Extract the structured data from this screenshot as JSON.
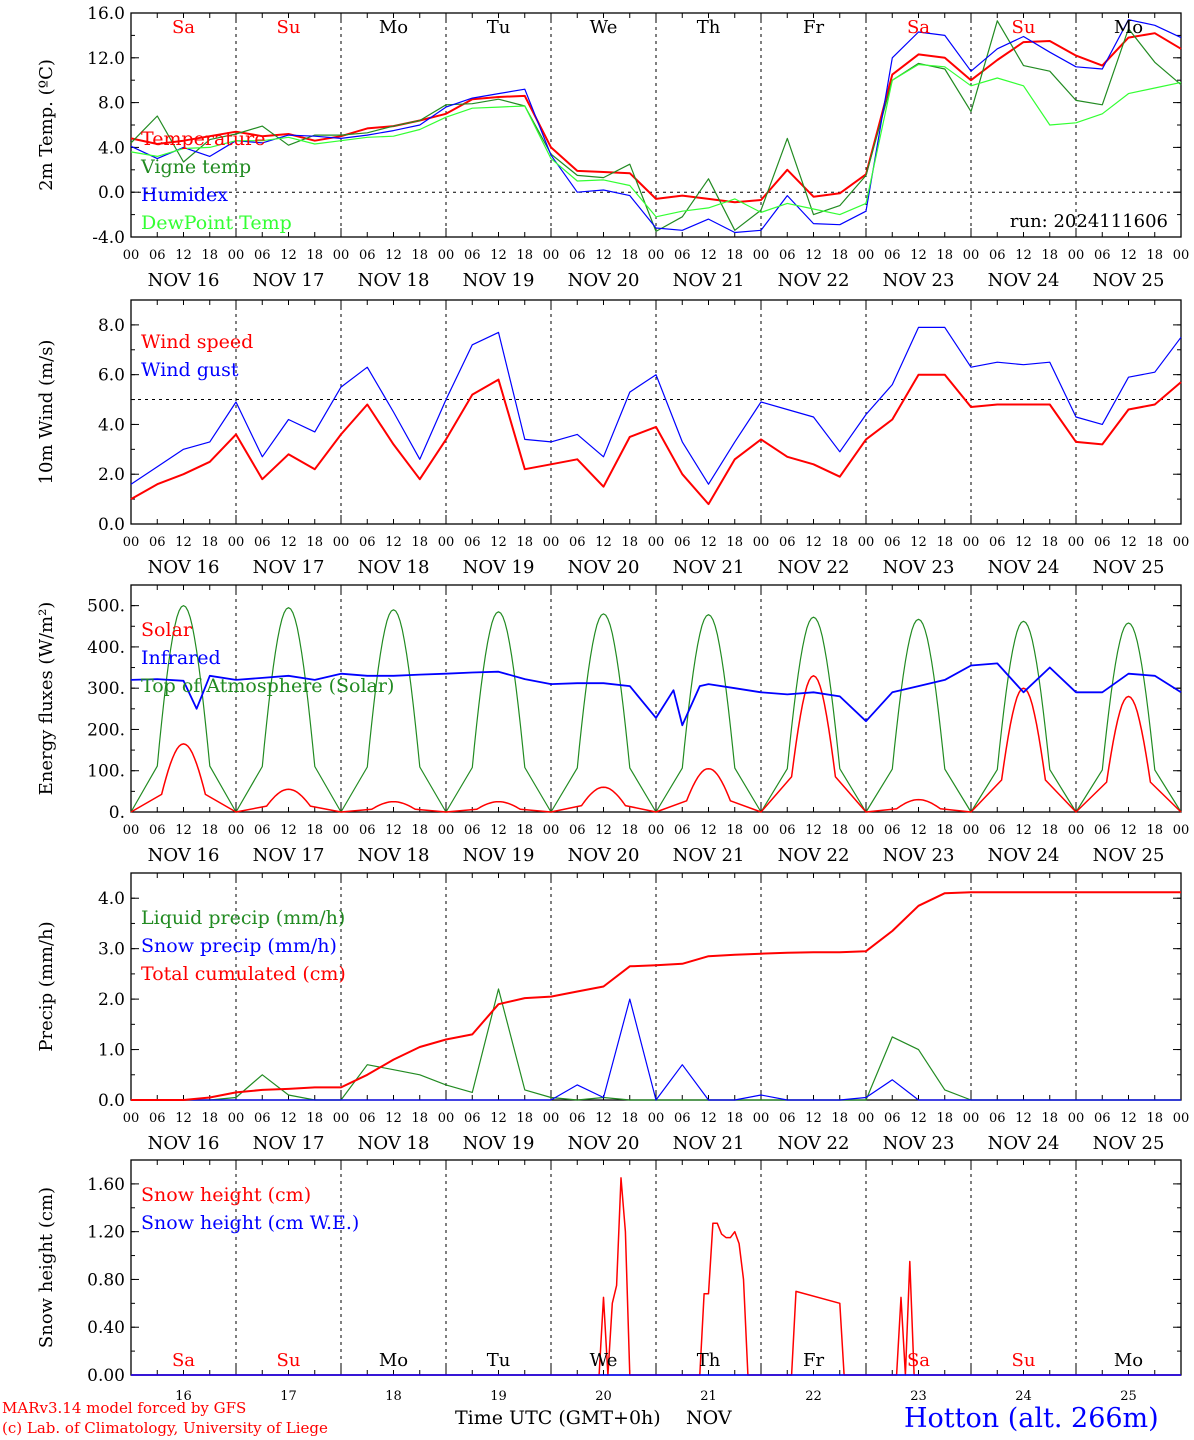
{
  "colors": {
    "red": "#ff0000",
    "green": "#228b22",
    "blue": "#0000ff",
    "lightgreen": "#33ff33",
    "darkgreen": "#228b22",
    "axis": "#000000"
  },
  "footer": {
    "model_line": "MARv3.14 model forced by GFS",
    "copyright_line": "(c) Lab. of Climatology, University of Liege",
    "time_axis_label": "Time UTC (GMT+0h)",
    "month_label": "NOV",
    "station": "Hotton (alt. 266m)"
  },
  "time_axis": {
    "hour_ticks": [
      "00",
      "06",
      "12",
      "18"
    ],
    "final_tick": "00",
    "dates": [
      "NOV 16",
      "NOV 17",
      "NOV 18",
      "NOV 19",
      "NOV 20",
      "NOV 21",
      "NOV 22",
      "NOV 23",
      "NOV 24",
      "NOV 25"
    ],
    "weekdays": [
      "Sa",
      "Su",
      "Mo",
      "Tu",
      "We",
      "Th",
      "Fr",
      "Sa",
      "Su",
      "Mo"
    ],
    "weekday_colors": [
      "red",
      "red",
      "black",
      "black",
      "black",
      "black",
      "black",
      "red",
      "red",
      "black"
    ],
    "day_numbers": [
      "16",
      "17",
      "18",
      "19",
      "20",
      "21",
      "22",
      "23",
      "24",
      "25"
    ]
  },
  "chart_data": [
    {
      "id": "temp",
      "type": "line",
      "ylabel": "2m Temp. (ºC)",
      "ylim": [
        -4,
        16
      ],
      "yticks": [
        "-4.0",
        "0.0",
        "4.0",
        "8.0",
        "12.0",
        "16.0"
      ],
      "ytick_values": [
        -4,
        0,
        4,
        8,
        12,
        16
      ],
      "reference_line": 0,
      "annotation": "run: 2024111606",
      "x_hours": [
        0,
        6,
        12,
        18,
        24,
        30,
        36,
        42,
        48,
        54,
        60,
        66,
        72,
        78,
        84,
        90,
        96,
        102,
        108,
        114,
        120,
        126,
        132,
        138,
        144,
        150,
        156,
        162,
        168,
        174,
        180,
        186,
        192,
        198,
        204,
        210,
        216,
        222,
        228,
        234,
        240
      ],
      "series": [
        {
          "name": "Temperature",
          "color": "red",
          "values": [
            4.8,
            4.3,
            4.6,
            5.0,
            5.4,
            5.0,
            5.2,
            4.6,
            5.0,
            5.7,
            5.9,
            6.4,
            7.0,
            8.3,
            8.5,
            8.6,
            4.0,
            1.9,
            1.8,
            1.7,
            -0.6,
            -0.3,
            -0.6,
            -0.9,
            -0.7,
            2.0,
            -0.4,
            -0.1,
            1.6,
            10.5,
            12.3,
            12.0,
            10.0,
            11.8,
            13.4,
            13.5,
            12.2,
            11.3,
            13.8,
            14.2,
            12.8
          ]
        },
        {
          "name": "Vigne temp",
          "color": "green",
          "values": [
            4.4,
            6.8,
            2.7,
            4.7,
            5.2,
            5.9,
            4.2,
            5.1,
            5.1,
            5.3,
            5.9,
            6.4,
            7.8,
            7.9,
            8.3,
            7.7,
            3.4,
            1.5,
            1.3,
            2.5,
            -3.5,
            -2.2,
            1.2,
            -3.4,
            -1.6,
            4.8,
            -2.0,
            -1.2,
            1.5,
            10.0,
            11.5,
            11.0,
            7.2,
            15.3,
            11.3,
            10.8,
            8.2,
            7.8,
            14.6,
            11.6,
            9.6
          ]
        },
        {
          "name": "Humidex",
          "color": "blue",
          "values": [
            4.1,
            3.0,
            4.0,
            3.2,
            4.6,
            4.4,
            5.1,
            5.0,
            4.8,
            5.1,
            5.5,
            6.0,
            7.6,
            8.4,
            8.8,
            9.2,
            3.3,
            0.0,
            0.2,
            -0.3,
            -3.2,
            -3.4,
            -2.4,
            -3.6,
            -3.4,
            -0.3,
            -2.8,
            -2.9,
            -1.7,
            12.0,
            14.3,
            14.0,
            10.8,
            12.8,
            13.9,
            12.5,
            11.2,
            11.0,
            15.4,
            14.9,
            13.8
          ]
        },
        {
          "name": "DewPoint Temp",
          "color": "lightgreen",
          "values": [
            3.6,
            3.2,
            3.9,
            4.0,
            4.6,
            4.6,
            4.9,
            4.3,
            4.6,
            4.9,
            5.0,
            5.6,
            6.7,
            7.5,
            7.6,
            7.7,
            3.0,
            1.0,
            1.1,
            0.6,
            -2.2,
            -1.7,
            -1.4,
            -0.6,
            -1.8,
            -1.0,
            -1.5,
            -2.0,
            -1.0,
            10.0,
            11.4,
            11.2,
            9.5,
            10.2,
            9.5,
            6.0,
            6.2,
            7.0,
            8.8,
            9.3,
            9.8
          ]
        }
      ]
    },
    {
      "id": "wind",
      "type": "line",
      "ylabel": "10m Wind (m/s)",
      "ylim": [
        0,
        9
      ],
      "yticks": [
        "0.0",
        "2.0",
        "4.0",
        "6.0",
        "8.0"
      ],
      "ytick_values": [
        0,
        2,
        4,
        6,
        8
      ],
      "reference_line": 5,
      "x_hours": [
        0,
        6,
        12,
        18,
        24,
        30,
        36,
        42,
        48,
        54,
        60,
        66,
        72,
        78,
        84,
        90,
        96,
        102,
        108,
        114,
        120,
        126,
        132,
        138,
        144,
        150,
        156,
        162,
        168,
        174,
        180,
        186,
        192,
        198,
        204,
        210,
        216,
        222,
        228,
        234,
        240
      ],
      "series": [
        {
          "name": "Wind speed",
          "color": "red",
          "values": [
            1.0,
            1.6,
            2.0,
            2.5,
            3.6,
            1.8,
            2.8,
            2.2,
            3.6,
            4.8,
            3.2,
            1.8,
            3.4,
            5.2,
            5.8,
            2.2,
            2.4,
            2.6,
            1.5,
            3.5,
            3.9,
            2.0,
            0.8,
            2.6,
            3.4,
            2.7,
            2.4,
            1.9,
            3.4,
            4.2,
            6.0,
            6.0,
            4.7,
            4.8,
            4.8,
            4.8,
            3.3,
            3.2,
            4.6,
            4.8,
            5.7
          ]
        },
        {
          "name": "Wind gust",
          "color": "blue",
          "values": [
            1.6,
            2.3,
            3.0,
            3.3,
            4.9,
            2.7,
            4.2,
            3.7,
            5.5,
            6.3,
            4.5,
            2.6,
            5.0,
            7.2,
            7.7,
            3.4,
            3.3,
            3.6,
            2.7,
            5.3,
            6.0,
            3.3,
            1.6,
            3.3,
            4.9,
            4.6,
            4.3,
            2.9,
            4.4,
            5.6,
            7.9,
            7.9,
            6.3,
            6.5,
            6.4,
            6.5,
            4.3,
            4.0,
            5.9,
            6.1,
            7.5
          ]
        }
      ]
    },
    {
      "id": "energy",
      "type": "line",
      "ylabel": "Energy fluxes (W/m²)",
      "ylim": [
        0,
        550
      ],
      "yticks": [
        "0.",
        "100.",
        "200.",
        "300.",
        "400.",
        "500."
      ],
      "ytick_values": [
        0,
        100,
        200,
        300,
        400,
        500
      ],
      "solar_peaks": [
        165,
        55,
        25,
        25,
        60,
        105,
        330,
        30,
        300,
        280
      ],
      "toa_peaks": [
        500,
        495,
        490,
        485,
        480,
        478,
        472,
        467,
        462,
        458
      ],
      "infrared_x": [
        0,
        6,
        12,
        15,
        18,
        24,
        30,
        36,
        42,
        48,
        54,
        60,
        66,
        72,
        78,
        84,
        90,
        96,
        102,
        108,
        114,
        120,
        124,
        126,
        130,
        132,
        138,
        144,
        150,
        156,
        162,
        168,
        174,
        180,
        186,
        192,
        198,
        204,
        210,
        216,
        222,
        228,
        234,
        240
      ],
      "infrared_values": [
        320,
        322,
        318,
        250,
        330,
        320,
        325,
        330,
        320,
        335,
        330,
        330,
        333,
        335,
        338,
        340,
        322,
        310,
        312,
        312,
        305,
        228,
        295,
        210,
        305,
        310,
        300,
        290,
        285,
        290,
        280,
        220,
        290,
        305,
        320,
        355,
        360,
        290,
        350,
        290,
        290,
        335,
        330,
        290
      ],
      "series": [
        {
          "name": "Solar",
          "color": "red"
        },
        {
          "name": "Infrared",
          "color": "blue"
        },
        {
          "name": "Top of Atmosphere (Solar)",
          "color": "green"
        }
      ]
    },
    {
      "id": "precip",
      "type": "line",
      "ylabel": "Precip (mm/h)",
      "ylim": [
        0,
        4.5
      ],
      "yticks": [
        "0.0",
        "1.0",
        "2.0",
        "3.0",
        "4.0"
      ],
      "ytick_values": [
        0,
        1,
        2,
        3,
        4
      ],
      "x_hours": [
        0,
        6,
        12,
        18,
        24,
        30,
        36,
        42,
        48,
        54,
        60,
        66,
        72,
        78,
        84,
        90,
        96,
        102,
        108,
        114,
        120,
        126,
        132,
        138,
        144,
        150,
        156,
        162,
        168,
        174,
        180,
        186,
        192,
        198,
        204,
        210,
        216,
        222,
        228,
        234,
        240
      ],
      "series": [
        {
          "name": "Liquid precip (mm/h)",
          "color": "green",
          "values": [
            0,
            0,
            0,
            0,
            0.05,
            0.5,
            0.1,
            0,
            0,
            0.7,
            0.6,
            0.5,
            0.3,
            0.15,
            2.2,
            0.2,
            0.05,
            0,
            0.05,
            0,
            0,
            0,
            0,
            0,
            0,
            0,
            0,
            0,
            0,
            1.25,
            1.0,
            0.2,
            0,
            0,
            0,
            0,
            0,
            0,
            0,
            0,
            0
          ]
        },
        {
          "name": "Snow precip (mm/h)",
          "color": "blue",
          "values": [
            0,
            0,
            0,
            0,
            0,
            0,
            0,
            0,
            0,
            0,
            0,
            0,
            0,
            0,
            0,
            0,
            0,
            0.3,
            0.05,
            2.0,
            0,
            0.7,
            0,
            0,
            0.1,
            0,
            0,
            0,
            0.05,
            0.4,
            0,
            0,
            0,
            0,
            0,
            0,
            0,
            0,
            0,
            0,
            0
          ]
        },
        {
          "name": "Total cumulated (cm)",
          "color": "red",
          "values": [
            0,
            0,
            0,
            0.05,
            0.15,
            0.2,
            0.22,
            0.25,
            0.25,
            0.5,
            0.8,
            1.05,
            1.2,
            1.3,
            1.9,
            2.02,
            2.05,
            2.15,
            2.25,
            2.65,
            2.67,
            2.7,
            2.85,
            2.88,
            2.9,
            2.92,
            2.93,
            2.93,
            2.95,
            3.35,
            3.85,
            4.1,
            4.12,
            4.12,
            4.12,
            4.12,
            4.12,
            4.12,
            4.12,
            4.12,
            4.12
          ]
        }
      ]
    },
    {
      "id": "snow",
      "type": "line",
      "ylabel": "Snow height (cm)",
      "ylim": [
        0,
        1.8
      ],
      "yticks": [
        "0.00",
        "0.40",
        "0.80",
        "1.20",
        "1.60"
      ],
      "ytick_values": [
        0,
        0.4,
        0.8,
        1.2,
        1.6
      ],
      "series": [
        {
          "name": "Snow height (cm)",
          "color": "red",
          "x": [
            0,
            107,
            108,
            109,
            110,
            111,
            112,
            113,
            114,
            115,
            116,
            117,
            130,
            131,
            132,
            133,
            134,
            135,
            136,
            137,
            138,
            139,
            140,
            141,
            142,
            143,
            151,
            152,
            162,
            163,
            175,
            176,
            177,
            178,
            179,
            180,
            240
          ],
          "values": [
            0,
            0,
            0.65,
            0,
            0.6,
            0.75,
            1.65,
            1.2,
            0,
            0,
            0,
            0,
            0,
            0.68,
            0.68,
            1.27,
            1.27,
            1.18,
            1.15,
            1.15,
            1.2,
            1.1,
            0.8,
            0,
            0,
            0,
            0,
            0.7,
            0.6,
            0,
            0,
            0.65,
            0,
            0.95,
            0,
            0,
            0
          ]
        },
        {
          "name": "Snow height (cm W.E.)",
          "color": "blue",
          "x": [
            0,
            240
          ],
          "values": [
            0,
            0
          ]
        }
      ]
    }
  ]
}
